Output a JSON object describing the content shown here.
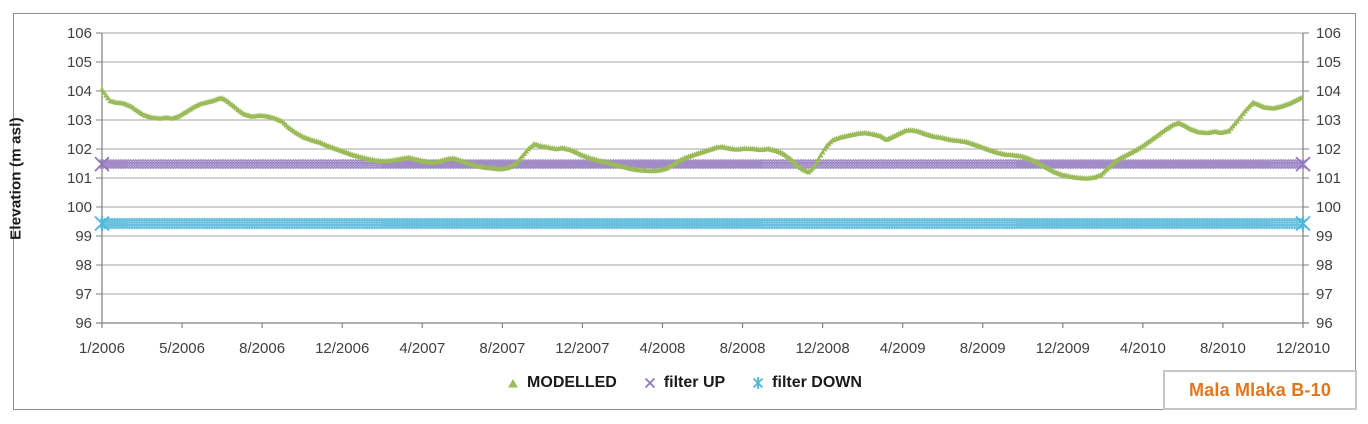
{
  "figure": {
    "station_label": "Mala Mlaka B-10",
    "station_label_color": "#e2761e"
  },
  "chart_data": {
    "type": "line",
    "title": "",
    "ylabel": "Elevation (m asl)",
    "xlabel": "",
    "ylim": [
      96,
      106
    ],
    "grid": "horizontal",
    "legend_position": "bottom-center",
    "y_ticks": [
      106,
      105,
      104,
      103,
      102,
      101,
      100,
      99,
      98,
      97,
      96
    ],
    "x_tick_labels": [
      "1/2006",
      "5/2006",
      "8/2006",
      "12/2006",
      "4/2007",
      "8/2007",
      "12/2007",
      "4/2008",
      "8/2008",
      "12/2008",
      "4/2009",
      "8/2009",
      "12/2009",
      "4/2010",
      "8/2010",
      "12/2010"
    ],
    "x_unit": "months since 1/2006, range 0-60",
    "legend": [
      {
        "label": "MODELLED",
        "marker": "triangle",
        "color": "#9BBB59"
      },
      {
        "label": "filter UP",
        "marker": "cross",
        "color": "#9177BD"
      },
      {
        "label": "filter DOWN",
        "marker": "star",
        "color": "#4FB6D8"
      }
    ],
    "series": [
      {
        "name": "MODELLED",
        "marker": "triangle",
        "color": "#9BBB59",
        "points_month_value": [
          [
            0,
            104.05
          ],
          [
            0.2,
            103.85
          ],
          [
            0.4,
            103.66
          ],
          [
            0.7,
            103.6
          ],
          [
            1.1,
            103.57
          ],
          [
            1.5,
            103.45
          ],
          [
            1.8,
            103.3
          ],
          [
            2.1,
            103.17
          ],
          [
            2.5,
            103.08
          ],
          [
            2.9,
            103.05
          ],
          [
            3.2,
            103.08
          ],
          [
            3.5,
            103.05
          ],
          [
            3.8,
            103.12
          ],
          [
            4.2,
            103.28
          ],
          [
            4.6,
            103.45
          ],
          [
            4.9,
            103.55
          ],
          [
            5.2,
            103.6
          ],
          [
            5.5,
            103.65
          ],
          [
            5.8,
            103.73
          ],
          [
            6,
            103.75
          ],
          [
            6.2,
            103.68
          ],
          [
            6.5,
            103.52
          ],
          [
            6.8,
            103.35
          ],
          [
            7.1,
            103.2
          ],
          [
            7.5,
            103.12
          ],
          [
            7.9,
            103.15
          ],
          [
            8.3,
            103.12
          ],
          [
            8.7,
            103.04
          ],
          [
            9,
            102.95
          ],
          [
            9.3,
            102.75
          ],
          [
            9.7,
            102.55
          ],
          [
            10.1,
            102.4
          ],
          [
            10.5,
            102.3
          ],
          [
            10.9,
            102.22
          ],
          [
            11.3,
            102.1
          ],
          [
            11.7,
            102
          ],
          [
            12.1,
            101.9
          ],
          [
            12.5,
            101.8
          ],
          [
            12.9,
            101.72
          ],
          [
            13.3,
            101.65
          ],
          [
            13.7,
            101.6
          ],
          [
            14.1,
            101.57
          ],
          [
            14.5,
            101.6
          ],
          [
            14.9,
            101.65
          ],
          [
            15.3,
            101.7
          ],
          [
            15.7,
            101.64
          ],
          [
            16.1,
            101.57
          ],
          [
            16.5,
            101.52
          ],
          [
            16.9,
            101.58
          ],
          [
            17.3,
            101.66
          ],
          [
            17.6,
            101.67
          ],
          [
            17.9,
            101.6
          ],
          [
            18.3,
            101.5
          ],
          [
            18.7,
            101.42
          ],
          [
            19.1,
            101.36
          ],
          [
            19.5,
            101.33
          ],
          [
            19.9,
            101.3
          ],
          [
            20.3,
            101.35
          ],
          [
            20.7,
            101.5
          ],
          [
            21,
            101.75
          ],
          [
            21.3,
            102
          ],
          [
            21.6,
            102.17
          ],
          [
            21.9,
            102.1
          ],
          [
            22.3,
            102.05
          ],
          [
            22.7,
            102
          ],
          [
            23,
            102.03
          ],
          [
            23.4,
            101.97
          ],
          [
            23.7,
            101.88
          ],
          [
            24,
            101.78
          ],
          [
            24.4,
            101.68
          ],
          [
            24.8,
            101.6
          ],
          [
            25.2,
            101.53
          ],
          [
            25.6,
            101.46
          ],
          [
            26,
            101.39
          ],
          [
            26.4,
            101.32
          ],
          [
            26.8,
            101.27
          ],
          [
            27.2,
            101.25
          ],
          [
            27.6,
            101.24
          ],
          [
            27.9,
            101.27
          ],
          [
            28.2,
            101.33
          ],
          [
            28.5,
            101.45
          ],
          [
            28.8,
            101.58
          ],
          [
            29.1,
            101.68
          ],
          [
            29.5,
            101.78
          ],
          [
            29.9,
            101.87
          ],
          [
            30.3,
            101.96
          ],
          [
            30.7,
            102.05
          ],
          [
            31,
            102.07
          ],
          [
            31.3,
            102.02
          ],
          [
            31.7,
            101.98
          ],
          [
            32.1,
            102.01
          ],
          [
            32.5,
            102
          ],
          [
            32.9,
            101.97
          ],
          [
            33.3,
            102
          ],
          [
            33.7,
            101.93
          ],
          [
            34,
            101.85
          ],
          [
            34.4,
            101.65
          ],
          [
            34.7,
            101.45
          ],
          [
            35,
            101.3
          ],
          [
            35.3,
            101.2
          ],
          [
            35.6,
            101.4
          ],
          [
            35.9,
            101.78
          ],
          [
            36.2,
            102.1
          ],
          [
            36.5,
            102.3
          ],
          [
            36.9,
            102.4
          ],
          [
            37.3,
            102.46
          ],
          [
            37.7,
            102.52
          ],
          [
            38.1,
            102.55
          ],
          [
            38.5,
            102.51
          ],
          [
            38.9,
            102.44
          ],
          [
            39.2,
            102.32
          ],
          [
            39.5,
            102.42
          ],
          [
            39.8,
            102.52
          ],
          [
            40.1,
            102.62
          ],
          [
            40.4,
            102.65
          ],
          [
            40.8,
            102.6
          ],
          [
            41.2,
            102.5
          ],
          [
            41.6,
            102.42
          ],
          [
            42,
            102.38
          ],
          [
            42.4,
            102.31
          ],
          [
            42.8,
            102.28
          ],
          [
            43.2,
            102.24
          ],
          [
            43.6,
            102.15
          ],
          [
            44,
            102.05
          ],
          [
            44.4,
            101.95
          ],
          [
            44.8,
            101.86
          ],
          [
            45.2,
            101.8
          ],
          [
            45.6,
            101.78
          ],
          [
            46,
            101.74
          ],
          [
            46.4,
            101.64
          ],
          [
            46.8,
            101.5
          ],
          [
            47.2,
            101.35
          ],
          [
            47.6,
            101.2
          ],
          [
            48,
            101.1
          ],
          [
            48.4,
            101.04
          ],
          [
            48.8,
            101
          ],
          [
            49.2,
            100.98
          ],
          [
            49.6,
            101.02
          ],
          [
            49.9,
            101.1
          ],
          [
            50.2,
            101.3
          ],
          [
            50.5,
            101.5
          ],
          [
            50.8,
            101.65
          ],
          [
            51.1,
            101.76
          ],
          [
            51.5,
            101.9
          ],
          [
            51.9,
            102.06
          ],
          [
            52.3,
            102.25
          ],
          [
            52.7,
            102.45
          ],
          [
            53.1,
            102.65
          ],
          [
            53.5,
            102.83
          ],
          [
            53.8,
            102.9
          ],
          [
            54.1,
            102.8
          ],
          [
            54.4,
            102.68
          ],
          [
            54.8,
            102.58
          ],
          [
            55.2,
            102.55
          ],
          [
            55.6,
            102.6
          ],
          [
            55.9,
            102.56
          ],
          [
            56.3,
            102.62
          ],
          [
            56.7,
            102.95
          ],
          [
            57.1,
            103.3
          ],
          [
            57.5,
            103.6
          ],
          [
            57.8,
            103.52
          ],
          [
            58.1,
            103.43
          ],
          [
            58.5,
            103.4
          ],
          [
            58.9,
            103.46
          ],
          [
            59.3,
            103.56
          ],
          [
            59.6,
            103.66
          ],
          [
            59.95,
            103.78
          ]
        ]
      },
      {
        "name": "filter UP",
        "marker": "cross",
        "color": "#9177BD",
        "constant_value": 101.48,
        "x_span_months": [
          0,
          60
        ]
      },
      {
        "name": "filter DOWN",
        "marker": "star",
        "color": "#4FB6D8",
        "constant_value": 99.43,
        "x_span_months": [
          0,
          60
        ]
      }
    ]
  }
}
